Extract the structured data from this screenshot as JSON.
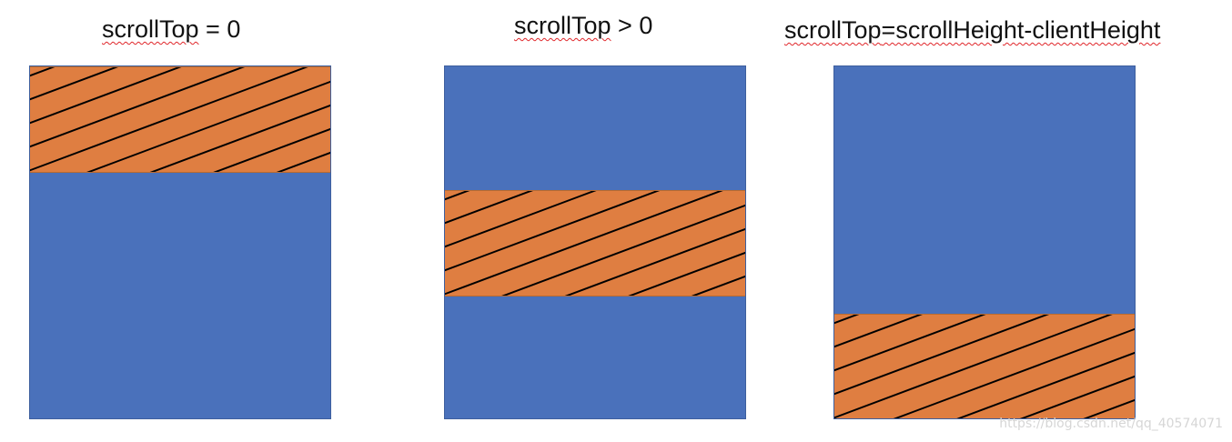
{
  "panels": [
    {
      "title_keyword": "scrollTop",
      "title_rest": " = 0",
      "viewport_scroll_fraction": 0.0
    },
    {
      "title_keyword": "scrollTop",
      "title_rest": " > 0",
      "viewport_scroll_fraction": 0.5
    },
    {
      "title_keyword": "scrollTop",
      "title_rest": "=scrollHeight-clientHeight",
      "viewport_scroll_fraction": 1.0
    }
  ],
  "colors": {
    "content": "#4a71bb",
    "viewport": "#df7e41",
    "hatch": "#000000"
  },
  "watermark": "https://blog.csdn.net/qq_40574071"
}
